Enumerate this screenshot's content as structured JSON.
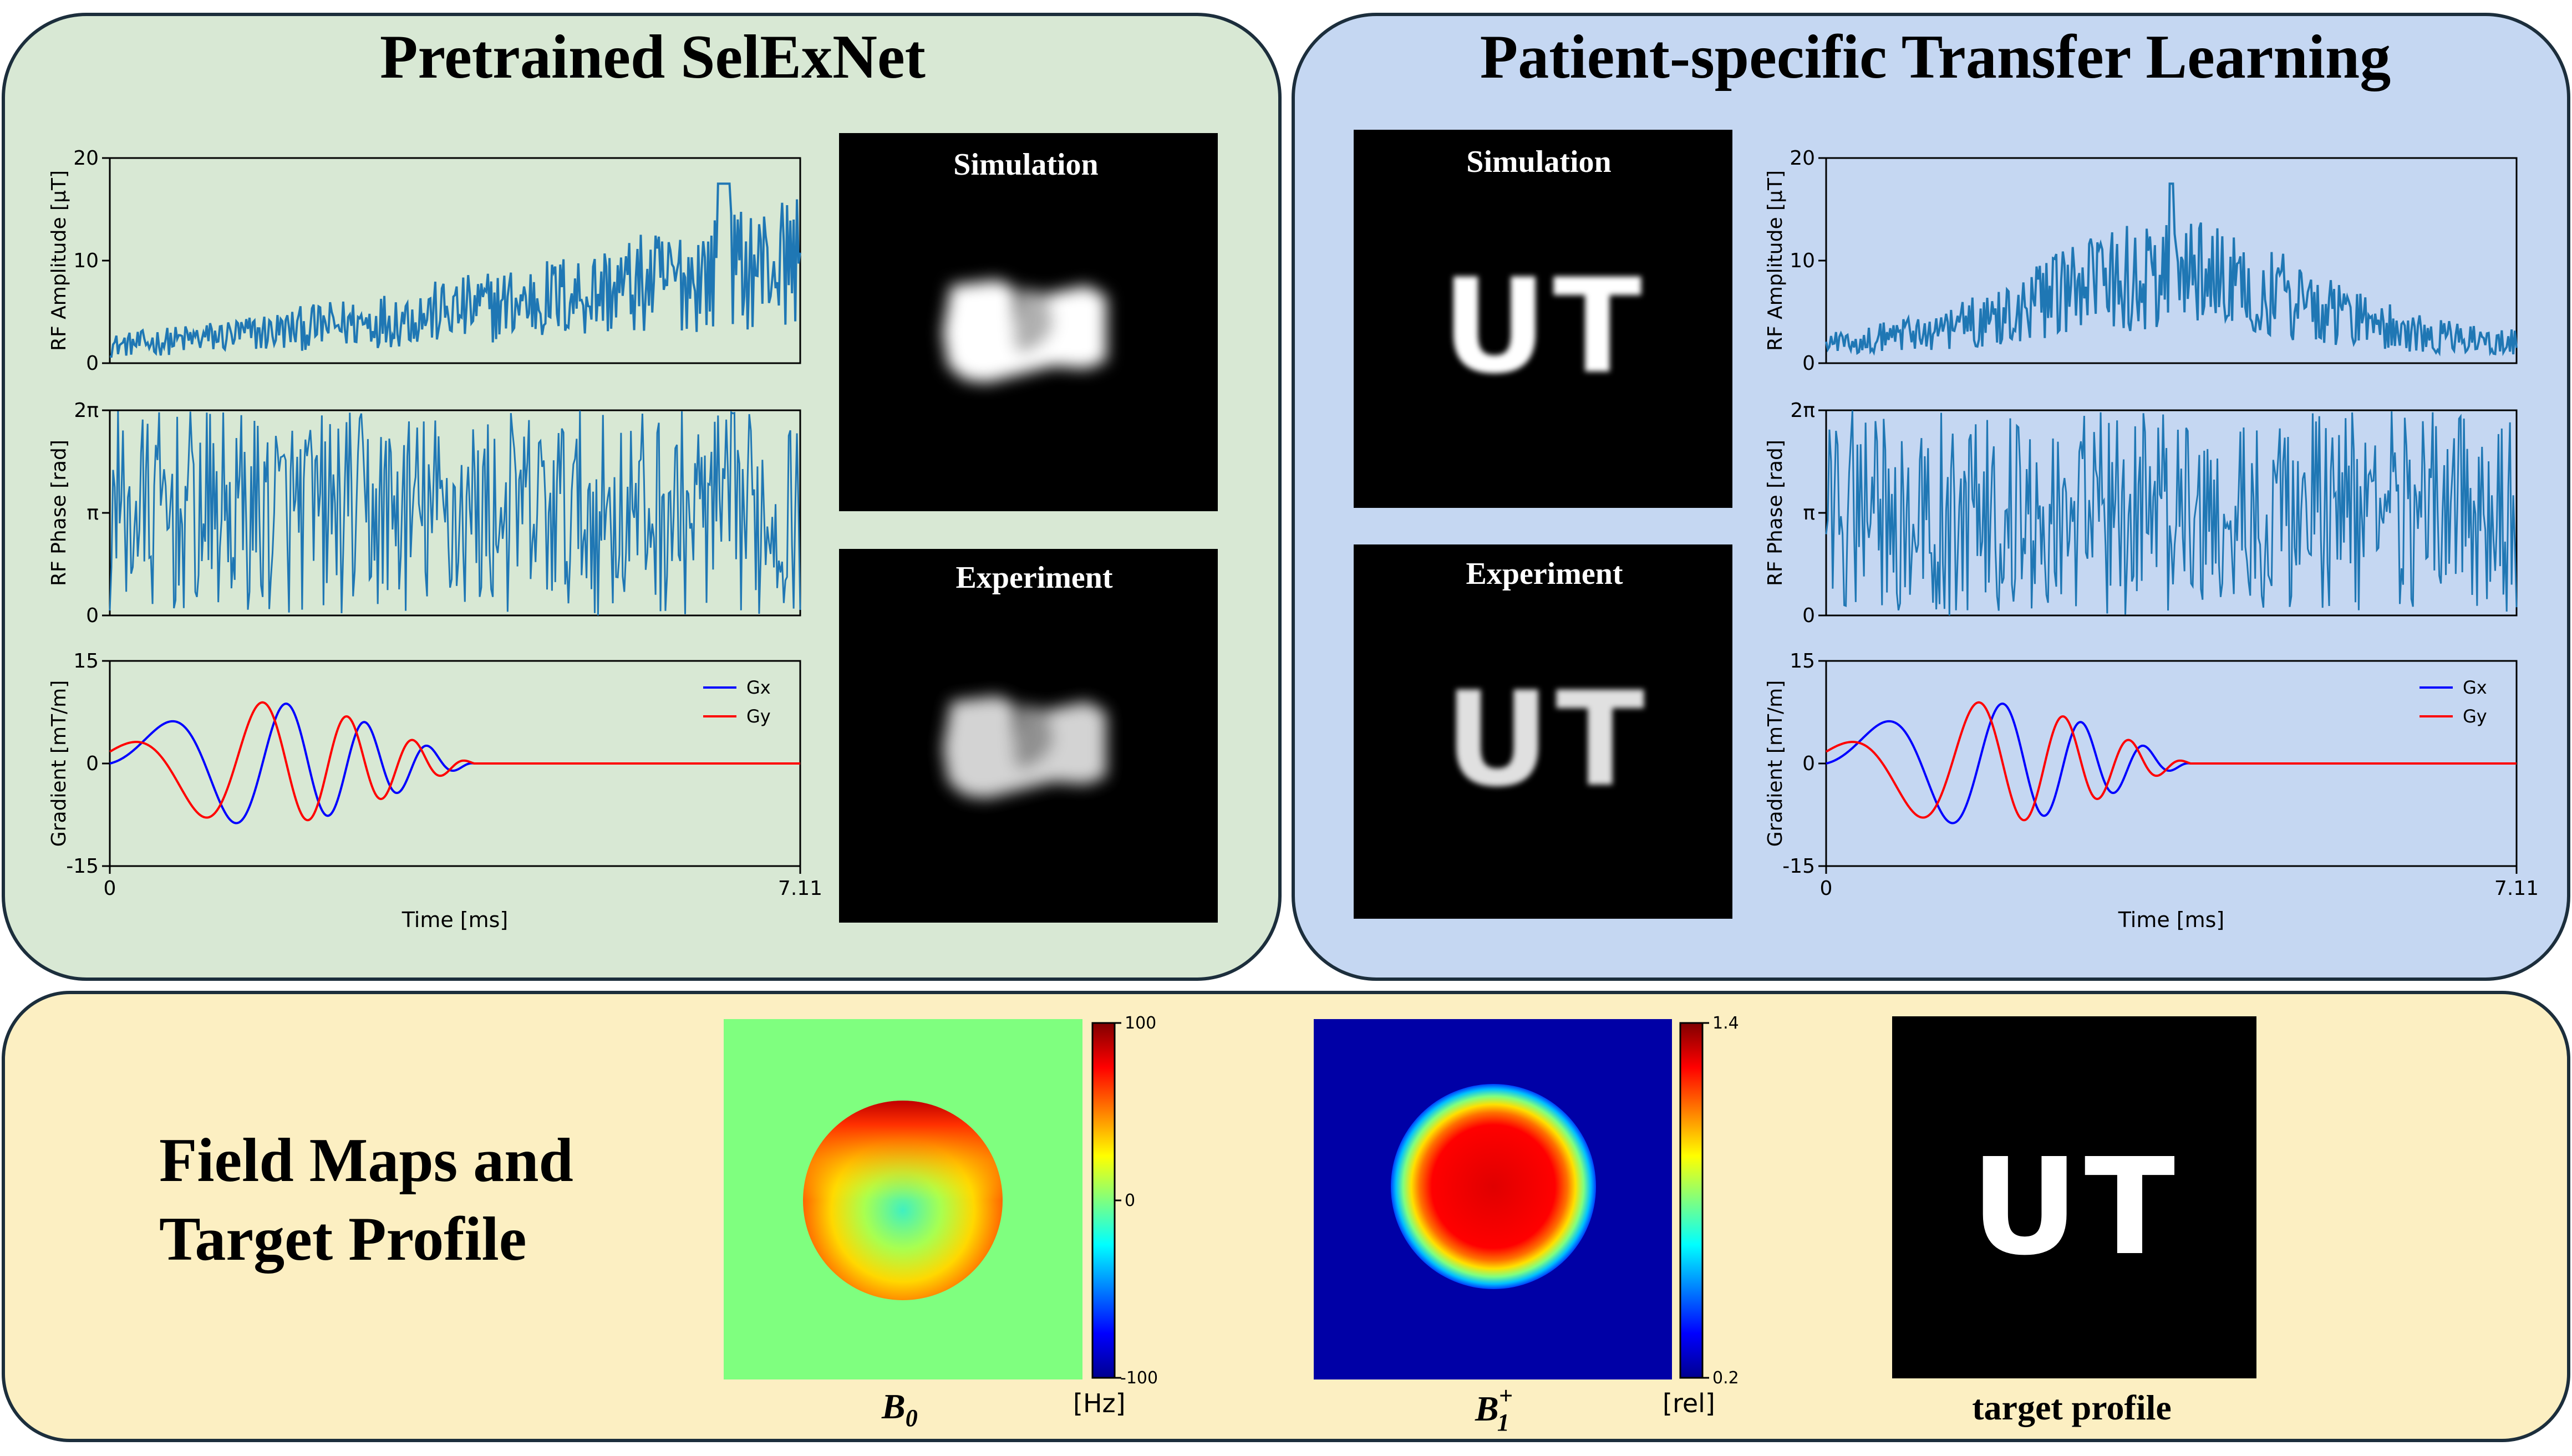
{
  "colors": {
    "left_panel_fill": "#d8e8d4",
    "right_panel_fill": "#c5d7f2",
    "bottom_panel_fill": "#fcefc2",
    "panel_border": "#1c2e3c",
    "rf_line": "#1f77b4",
    "gx": "#0000ff",
    "gy": "#ff0000"
  },
  "pretrained": {
    "title": "Pretrained SelExNet",
    "simulation_label": "Simulation",
    "experiment_label": "Experiment"
  },
  "transfer": {
    "title": "Patient-specific Transfer Learning",
    "simulation_label": "Simulation",
    "experiment_label": "Experiment"
  },
  "fieldmaps": {
    "title_line1": "Field Maps and",
    "title_line2": "Target Profile",
    "b0": {
      "label": "B",
      "sub": "0",
      "unit": "[Hz]",
      "ticks": [
        "100",
        "0",
        "-100"
      ],
      "range": [
        -100,
        100
      ]
    },
    "b1": {
      "label": "B",
      "sup": "+",
      "sub": "1",
      "unit": "[rel]",
      "ticks": [
        "1.4",
        "0.2"
      ],
      "range": [
        0.2,
        1.4
      ]
    },
    "target_label": "target profile",
    "target_text": "UT"
  },
  "chart_data": [
    {
      "id": "pretrained",
      "type": "line",
      "xlabel": "Time [ms]",
      "xlim": [
        0,
        7.11
      ],
      "xticks": [
        "0",
        "7.11"
      ],
      "subplots": [
        {
          "ylabel": "RF Amplitude [μT]",
          "ylim": [
            0,
            20
          ],
          "yticks": [
            "20",
            "10",
            "0"
          ],
          "series": [
            {
              "values_note": "noisy RF amplitude, rising from ~2 to ~10 μT with peak ~17 μT near 6.3 ms"
            }
          ]
        },
        {
          "ylabel": "RF Phase [rad]",
          "ylim": [
            0,
            6.283
          ],
          "yticks": [
            "2π",
            "π",
            "0"
          ],
          "series": [
            {
              "values_note": "rapidly wrapping phase 0–2π"
            }
          ]
        },
        {
          "ylabel": "Gradient [mT/m]",
          "ylim": [
            -15,
            15
          ],
          "yticks": [
            "15",
            "0",
            "-15"
          ],
          "series": [
            {
              "name": "Gx",
              "amplitude_max": 11
            },
            {
              "name": "Gy",
              "amplitude_max": 11
            }
          ]
        }
      ]
    },
    {
      "id": "transfer",
      "type": "line",
      "xlabel": "Time [ms]",
      "xlim": [
        0,
        7.11
      ],
      "xticks": [
        "0",
        "7.11"
      ],
      "subplots": [
        {
          "ylabel": "RF Amplitude [μT]",
          "ylim": [
            0,
            20
          ],
          "yticks": [
            "20",
            "10",
            "0"
          ],
          "series": [
            {
              "values_note": "noisy RF amplitude, bell-shaped envelope, peak ~17 μT near 3.5 ms"
            }
          ]
        },
        {
          "ylabel": "RF Phase [rad]",
          "ylim": [
            0,
            6.283
          ],
          "yticks": [
            "2π",
            "π",
            "0"
          ],
          "series": [
            {
              "values_note": "rapidly wrapping phase 0–2π"
            }
          ]
        },
        {
          "ylabel": "Gradient [mT/m]",
          "ylim": [
            -15,
            15
          ],
          "yticks": [
            "15",
            "0",
            "-15"
          ],
          "series": [
            {
              "name": "Gx",
              "amplitude_max": 11
            },
            {
              "name": "Gy",
              "amplitude_max": 11
            }
          ]
        }
      ]
    }
  ]
}
